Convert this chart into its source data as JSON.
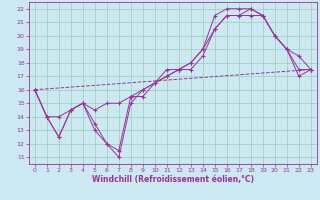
{
  "title": "",
  "xlabel": "Windchill (Refroidissement éolien,°C)",
  "bg_color": "#cce8f0",
  "grid_color": "#99ccbb",
  "line_color": "#993399",
  "xlim": [
    -0.5,
    23.5
  ],
  "ylim": [
    10.5,
    22.5
  ],
  "yticks": [
    11,
    12,
    13,
    14,
    15,
    16,
    17,
    18,
    19,
    20,
    21,
    22
  ],
  "xticks": [
    0,
    1,
    2,
    3,
    4,
    5,
    6,
    7,
    8,
    9,
    10,
    11,
    12,
    13,
    14,
    15,
    16,
    17,
    18,
    19,
    20,
    21,
    22,
    23
  ],
  "series": [
    {
      "x": [
        0,
        1,
        2,
        3,
        4,
        5,
        6,
        7,
        8,
        9,
        10,
        11,
        12,
        13,
        14,
        15,
        16,
        17,
        18,
        19,
        20,
        21,
        22,
        23
      ],
      "y": [
        16,
        14,
        12.5,
        14.5,
        15,
        13.0,
        12.0,
        11.0,
        15.0,
        16.0,
        16.5,
        17.5,
        17.5,
        18.0,
        19.0,
        21.5,
        22.0,
        22.0,
        22.0,
        21.5,
        20.0,
        19.0,
        18.5,
        17.5
      ],
      "style": "marker"
    },
    {
      "x": [
        0,
        1,
        2,
        3,
        4,
        5,
        6,
        7,
        8,
        9,
        10,
        11,
        12,
        13,
        14,
        15,
        16,
        17,
        18,
        19,
        20,
        21,
        22,
        23
      ],
      "y": [
        16,
        14,
        12.5,
        14.5,
        15,
        13.5,
        12.0,
        11.5,
        15.5,
        15.5,
        16.5,
        17.0,
        17.5,
        17.5,
        18.5,
        20.5,
        21.5,
        21.5,
        22.0,
        21.5,
        20.0,
        19.0,
        17.0,
        17.5
      ],
      "style": "marker"
    },
    {
      "x": [
        0,
        1,
        2,
        3,
        4,
        5,
        6,
        7,
        8,
        9,
        10,
        11,
        12,
        13,
        14,
        15,
        16,
        17,
        18,
        19,
        20,
        21,
        22,
        23
      ],
      "y": [
        16,
        14,
        14.0,
        14.5,
        15.0,
        14.5,
        15.0,
        15.0,
        15.5,
        16.0,
        16.5,
        17.0,
        17.5,
        18.0,
        19.0,
        20.5,
        21.5,
        21.5,
        21.5,
        21.5,
        20.0,
        19.0,
        17.5,
        17.5
      ],
      "style": "marker"
    },
    {
      "x": [
        0,
        23
      ],
      "y": [
        16,
        17.5
      ],
      "style": "dashed"
    }
  ]
}
